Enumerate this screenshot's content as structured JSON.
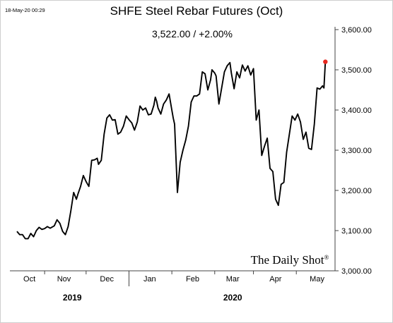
{
  "chart_data": {
    "type": "line",
    "timestamp": "18-May-20 00:29",
    "title": "SHFE Steel Rebar Futures (Oct)",
    "subtitle": "3,522.00  /  +2.00%",
    "watermark": "The Daily Shot",
    "watermark_mark": "®",
    "ylim": [
      3000,
      3600
    ],
    "yticks": [
      3000,
      3100,
      3200,
      3300,
      3400,
      3500,
      3600
    ],
    "ytick_labels": [
      "3,000.00",
      "3,100.00",
      "3,200.00",
      "3,300.00",
      "3,400.00",
      "3,500.00",
      "3,600.00"
    ],
    "xlim": [
      0,
      230
    ],
    "month_labels": [
      {
        "label": "Oct",
        "x": 9
      },
      {
        "label": "Nov",
        "x": 34
      },
      {
        "label": "Dec",
        "x": 65
      },
      {
        "label": "Jan",
        "x": 96
      },
      {
        "label": "Feb",
        "x": 127
      },
      {
        "label": "Mar",
        "x": 156
      },
      {
        "label": "Apr",
        "x": 187
      },
      {
        "label": "May",
        "x": 217
      }
    ],
    "month_boundaries": [
      20,
      50,
      81,
      112,
      143,
      171,
      202
    ],
    "year_boundary": 81,
    "year_labels": [
      {
        "label": "2019",
        "x": 40
      },
      {
        "label": "2020",
        "x": 156
      }
    ],
    "line_color": "#000000",
    "last_point_color": "#e8281f",
    "series": [
      {
        "x": [
          0,
          2,
          4,
          6,
          8,
          10,
          12,
          14,
          16,
          18,
          20,
          22,
          24,
          26,
          27,
          29,
          31,
          33,
          35,
          37,
          39,
          41,
          43,
          44,
          46,
          48,
          50,
          52,
          54,
          56,
          58,
          59,
          61,
          63,
          65,
          67,
          69,
          71,
          73,
          75,
          77,
          79,
          81,
          83,
          85,
          87,
          89,
          91,
          93,
          95,
          97,
          99,
          100,
          101,
          102,
          104,
          106,
          108,
          110,
          112,
          113,
          114,
          116,
          118,
          120,
          122,
          124,
          126,
          128,
          130,
          132,
          134,
          136,
          138,
          140,
          141,
          143,
          144,
          146,
          148,
          150,
          152,
          154,
          155,
          157,
          159,
          161,
          163,
          165,
          167,
          169,
          171,
          173,
          175,
          177,
          179,
          181,
          183,
          185,
          187,
          189,
          191,
          193,
          195,
          197,
          199,
          201,
          203,
          205,
          207,
          209,
          211,
          213,
          215,
          217,
          219,
          221,
          222,
          223
        ],
        "y": [
          3098,
          3090,
          3090,
          3080,
          3080,
          3093,
          3085,
          3100,
          3108,
          3103,
          3105,
          3110,
          3106,
          3110,
          3112,
          3127,
          3118,
          3098,
          3090,
          3110,
          3150,
          3195,
          3178,
          3190,
          3210,
          3237,
          3222,
          3210,
          3275,
          3276,
          3280,
          3265,
          3275,
          3340,
          3380,
          3388,
          3375,
          3376,
          3340,
          3345,
          3360,
          3385,
          3376,
          3368,
          3350,
          3370,
          3410,
          3400,
          3405,
          3388,
          3390,
          3412,
          3432,
          3422,
          3405,
          3390,
          3415,
          3425,
          3440,
          3400,
          3380,
          3365,
          3195,
          3270,
          3300,
          3325,
          3360,
          3420,
          3435,
          3435,
          3440,
          3495,
          3490,
          3450,
          3475,
          3500,
          3492,
          3485,
          3415,
          3455,
          3495,
          3510,
          3518,
          3492,
          3453,
          3495,
          3480,
          3512,
          3497,
          3510,
          3487,
          3503,
          3375,
          3400,
          3287,
          3310,
          3330,
          3255,
          3247,
          3178,
          3163,
          3215,
          3220,
          3295,
          3340,
          3385,
          3375,
          3390,
          3370,
          3327,
          3345,
          3305,
          3302,
          3365,
          3455,
          3452,
          3460,
          3455,
          3520
        ]
      }
    ]
  }
}
